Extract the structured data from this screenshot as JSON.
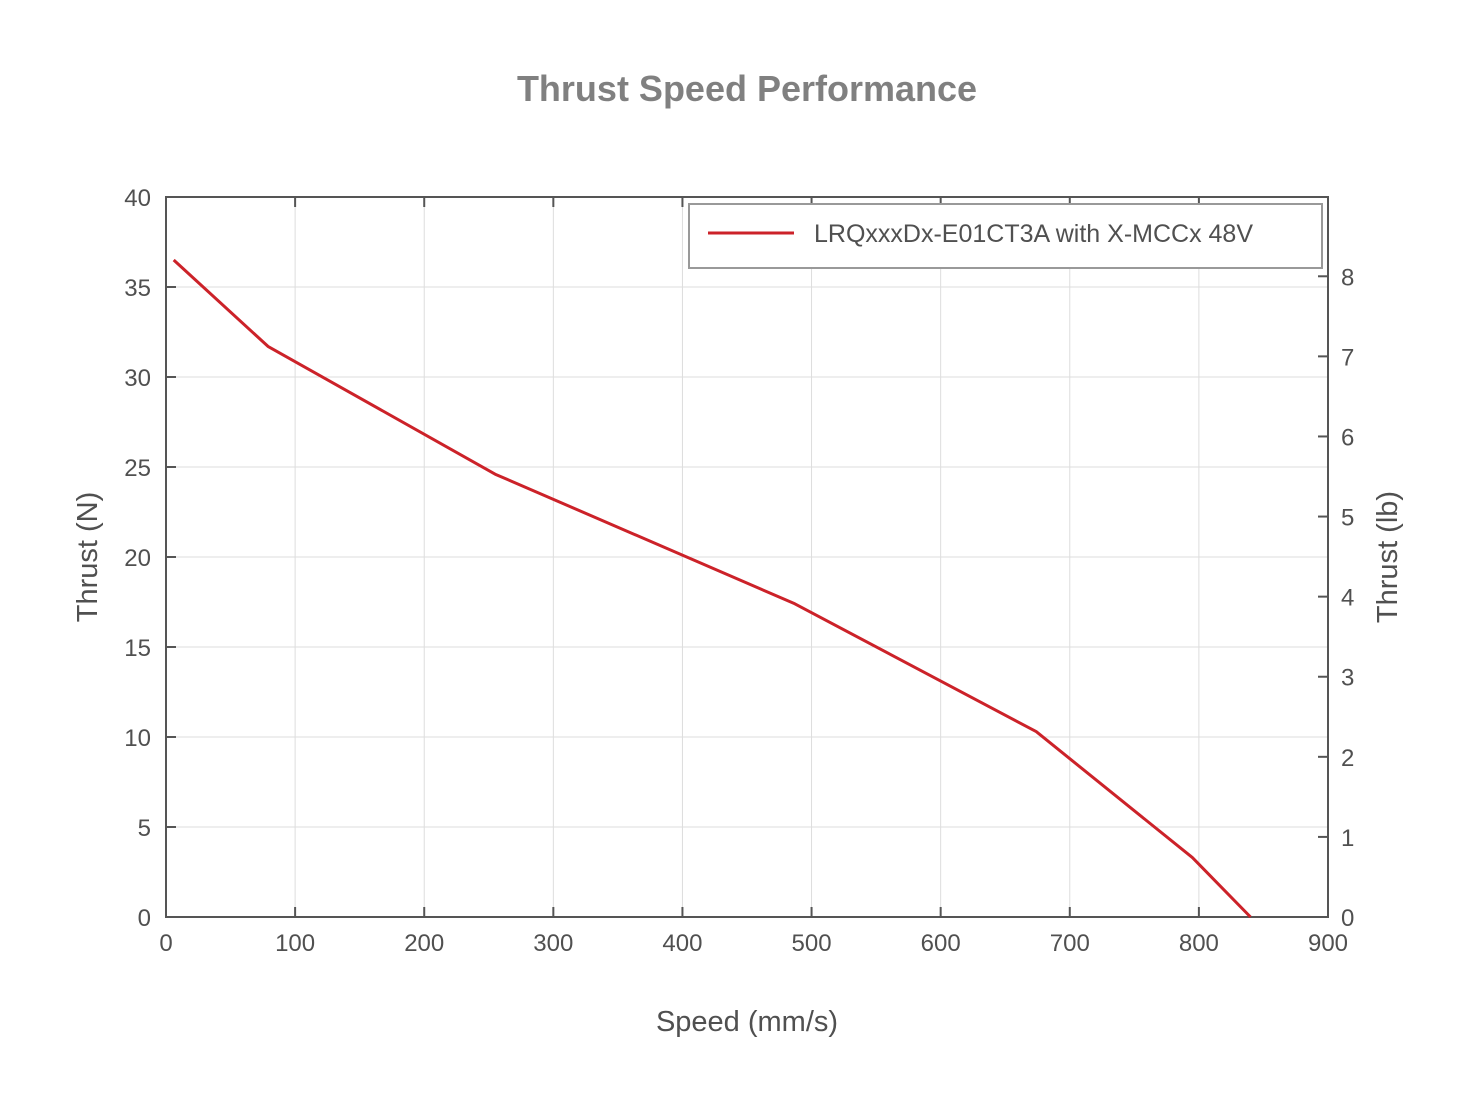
{
  "chart_data": {
    "type": "line",
    "title": "Thrust Speed Performance",
    "xlabel": "Speed (mm/s)",
    "ylabel": "Thrust (N)",
    "ylabel_right": "Thrust (lb)",
    "xlim": [
      0,
      900
    ],
    "ylim": [
      0,
      40
    ],
    "ylim_right": [
      0,
      8.99
    ],
    "xticks": [
      0,
      100,
      200,
      300,
      400,
      500,
      600,
      700,
      800,
      900
    ],
    "yticks": [
      0,
      5,
      10,
      15,
      20,
      25,
      30,
      35,
      40
    ],
    "yticks_right": [
      0,
      1,
      2,
      3,
      4,
      5,
      6,
      7,
      8
    ],
    "grid": true,
    "legend_position": "upper right",
    "series": [
      {
        "name": "LRQxxxDx-E01CT3A with X-MCCx 48V",
        "color": "#cc2229",
        "x": [
          6,
          79,
          255,
          487,
          674,
          795,
          840
        ],
        "y": [
          36.5,
          31.7,
          24.6,
          17.4,
          10.3,
          3.3,
          0
        ]
      }
    ]
  },
  "colors": {
    "title": "#808080",
    "axis": "#555555",
    "grid": "#dddddd",
    "text": "#505050",
    "legend_border": "#999999"
  }
}
